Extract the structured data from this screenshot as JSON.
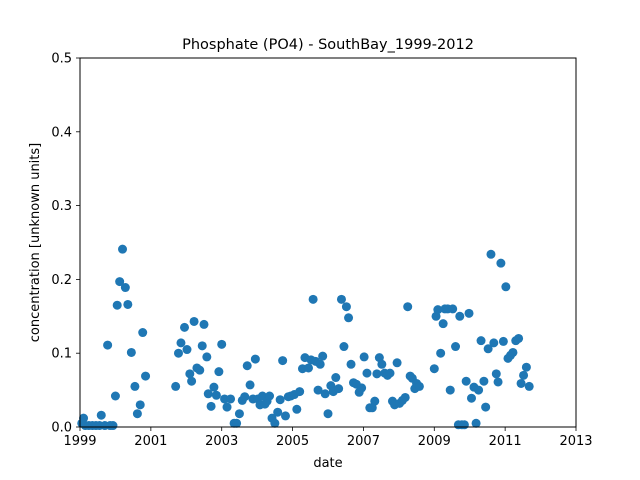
{
  "chart_data": {
    "type": "scatter",
    "title": "Phosphate (PO4) - SouthBay_1999-2012",
    "xlabel": "date",
    "ylabel": "concentration [unknown units]",
    "xlim": [
      1999.0,
      2013.0
    ],
    "ylim": [
      0,
      0.5
    ],
    "xticks": [
      1999,
      2001,
      2003,
      2005,
      2007,
      2009,
      2011,
      2013
    ],
    "xtick_labels": [
      "1999",
      "2001",
      "2003",
      "2005",
      "2007",
      "2009",
      "2011",
      "2013"
    ],
    "yticks": [
      0.0,
      0.1,
      0.2,
      0.3,
      0.4,
      0.5
    ],
    "ytick_labels": [
      "0.0",
      "0.1",
      "0.2",
      "0.3",
      "0.4",
      "0.5"
    ],
    "grid": false,
    "legend": "none",
    "marker_color": "#1f77b4",
    "series": [
      {
        "points": [
          [
            1999.05,
            0.005
          ],
          [
            1999.1,
            0.012
          ],
          [
            1999.15,
            0.002
          ],
          [
            1999.25,
            0.002
          ],
          [
            1999.35,
            0.002
          ],
          [
            1999.45,
            0.002
          ],
          [
            1999.55,
            0.002
          ],
          [
            1999.6,
            0.016
          ],
          [
            1999.7,
            0.002
          ],
          [
            1999.78,
            0.111
          ],
          [
            1999.85,
            0.002
          ],
          [
            1999.93,
            0.002
          ],
          [
            2000.0,
            0.042
          ],
          [
            2000.05,
            0.165
          ],
          [
            2000.12,
            0.197
          ],
          [
            2000.2,
            0.241
          ],
          [
            2000.28,
            0.189
          ],
          [
            2000.35,
            0.166
          ],
          [
            2000.45,
            0.101
          ],
          [
            2000.55,
            0.055
          ],
          [
            2000.62,
            0.018
          ],
          [
            2000.7,
            0.03
          ],
          [
            2000.77,
            0.128
          ],
          [
            2000.85,
            0.069
          ],
          [
            2001.7,
            0.055
          ],
          [
            2001.78,
            0.1
          ],
          [
            2001.85,
            0.114
          ],
          [
            2001.95,
            0.135
          ],
          [
            2002.02,
            0.105
          ],
          [
            2002.1,
            0.072
          ],
          [
            2002.15,
            0.062
          ],
          [
            2002.22,
            0.143
          ],
          [
            2002.3,
            0.08
          ],
          [
            2002.38,
            0.077
          ],
          [
            2002.45,
            0.11
          ],
          [
            2002.5,
            0.139
          ],
          [
            2002.58,
            0.095
          ],
          [
            2002.62,
            0.045
          ],
          [
            2002.7,
            0.028
          ],
          [
            2002.78,
            0.054
          ],
          [
            2002.85,
            0.043
          ],
          [
            2002.92,
            0.075
          ],
          [
            2003.0,
            0.112
          ],
          [
            2003.08,
            0.038
          ],
          [
            2003.15,
            0.027
          ],
          [
            2003.25,
            0.038
          ],
          [
            2003.35,
            0.005
          ],
          [
            2003.42,
            0.005
          ],
          [
            2003.5,
            0.018
          ],
          [
            2003.58,
            0.036
          ],
          [
            2003.65,
            0.041
          ],
          [
            2003.72,
            0.083
          ],
          [
            2003.8,
            0.057
          ],
          [
            2003.88,
            0.038
          ],
          [
            2003.95,
            0.092
          ],
          [
            2004.02,
            0.038
          ],
          [
            2004.08,
            0.03
          ],
          [
            2004.15,
            0.042
          ],
          [
            2004.22,
            0.031
          ],
          [
            2004.28,
            0.035
          ],
          [
            2004.35,
            0.042
          ],
          [
            2004.42,
            0.012
          ],
          [
            2004.5,
            0.005
          ],
          [
            2004.58,
            0.02
          ],
          [
            2004.65,
            0.037
          ],
          [
            2004.72,
            0.09
          ],
          [
            2004.8,
            0.015
          ],
          [
            2004.88,
            0.041
          ],
          [
            2004.95,
            0.042
          ],
          [
            2005.05,
            0.044
          ],
          [
            2005.12,
            0.024
          ],
          [
            2005.2,
            0.048
          ],
          [
            2005.28,
            0.079
          ],
          [
            2005.35,
            0.094
          ],
          [
            2005.45,
            0.08
          ],
          [
            2005.52,
            0.091
          ],
          [
            2005.58,
            0.173
          ],
          [
            2005.65,
            0.089
          ],
          [
            2005.72,
            0.05
          ],
          [
            2005.78,
            0.085
          ],
          [
            2005.85,
            0.096
          ],
          [
            2005.92,
            0.045
          ],
          [
            2006.0,
            0.018
          ],
          [
            2006.08,
            0.056
          ],
          [
            2006.15,
            0.048
          ],
          [
            2006.22,
            0.067
          ],
          [
            2006.3,
            0.052
          ],
          [
            2006.38,
            0.173
          ],
          [
            2006.45,
            0.109
          ],
          [
            2006.52,
            0.163
          ],
          [
            2006.58,
            0.148
          ],
          [
            2006.65,
            0.085
          ],
          [
            2006.72,
            0.06
          ],
          [
            2006.8,
            0.058
          ],
          [
            2006.88,
            0.047
          ],
          [
            2006.95,
            0.053
          ],
          [
            2007.02,
            0.095
          ],
          [
            2007.1,
            0.073
          ],
          [
            2007.18,
            0.026
          ],
          [
            2007.25,
            0.026
          ],
          [
            2007.32,
            0.035
          ],
          [
            2007.38,
            0.072
          ],
          [
            2007.45,
            0.094
          ],
          [
            2007.52,
            0.085
          ],
          [
            2007.6,
            0.073
          ],
          [
            2007.68,
            0.07
          ],
          [
            2007.75,
            0.073
          ],
          [
            2007.82,
            0.035
          ],
          [
            2007.88,
            0.03
          ],
          [
            2007.95,
            0.087
          ],
          [
            2008.02,
            0.032
          ],
          [
            2008.1,
            0.036
          ],
          [
            2008.18,
            0.04
          ],
          [
            2008.25,
            0.163
          ],
          [
            2008.32,
            0.069
          ],
          [
            2008.38,
            0.066
          ],
          [
            2008.45,
            0.052
          ],
          [
            2008.5,
            0.059
          ],
          [
            2008.58,
            0.055
          ],
          [
            2009.0,
            0.079
          ],
          [
            2009.05,
            0.15
          ],
          [
            2009.1,
            0.159
          ],
          [
            2009.18,
            0.1
          ],
          [
            2009.25,
            0.14
          ],
          [
            2009.3,
            0.16
          ],
          [
            2009.38,
            0.16
          ],
          [
            2009.45,
            0.05
          ],
          [
            2009.52,
            0.16
          ],
          [
            2009.6,
            0.109
          ],
          [
            2009.68,
            0.003
          ],
          [
            2009.72,
            0.15
          ],
          [
            2009.78,
            0.003
          ],
          [
            2009.85,
            0.003
          ],
          [
            2009.9,
            0.062
          ],
          [
            2009.98,
            0.154
          ],
          [
            2010.05,
            0.039
          ],
          [
            2010.12,
            0.054
          ],
          [
            2010.18,
            0.005
          ],
          [
            2010.25,
            0.05
          ],
          [
            2010.32,
            0.117
          ],
          [
            2010.4,
            0.062
          ],
          [
            2010.45,
            0.027
          ],
          [
            2010.52,
            0.106
          ],
          [
            2010.6,
            0.234
          ],
          [
            2010.68,
            0.114
          ],
          [
            2010.75,
            0.072
          ],
          [
            2010.8,
            0.061
          ],
          [
            2010.88,
            0.222
          ],
          [
            2010.95,
            0.116
          ],
          [
            2011.02,
            0.19
          ],
          [
            2011.08,
            0.093
          ],
          [
            2011.15,
            0.097
          ],
          [
            2011.22,
            0.101
          ],
          [
            2011.3,
            0.117
          ],
          [
            2011.38,
            0.12
          ],
          [
            2011.45,
            0.059
          ],
          [
            2011.52,
            0.07
          ],
          [
            2011.6,
            0.081
          ],
          [
            2011.68,
            0.055
          ]
        ]
      }
    ]
  }
}
